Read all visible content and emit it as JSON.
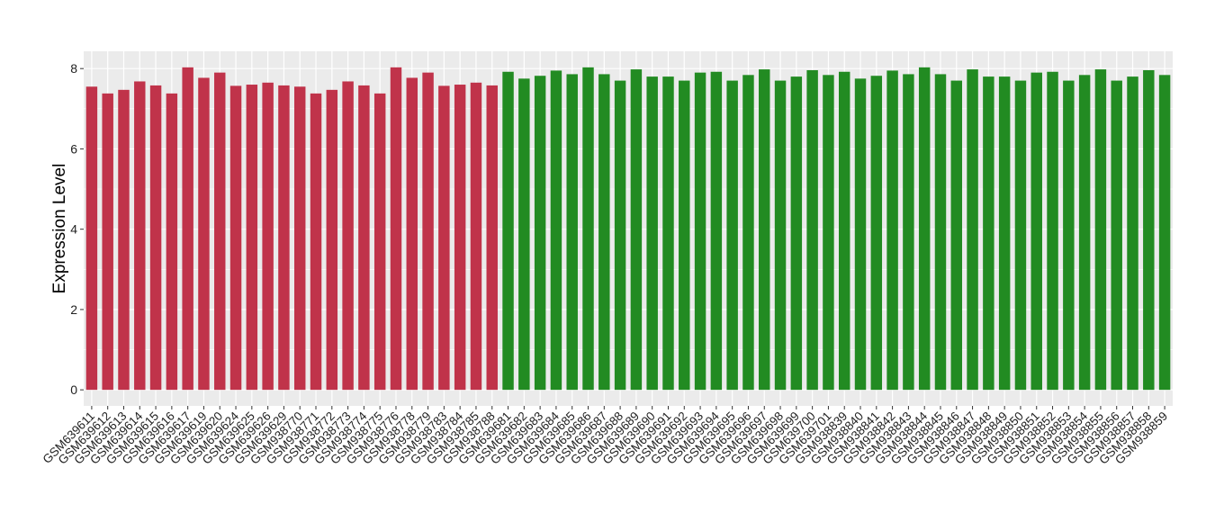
{
  "chart_data": {
    "type": "bar",
    "title": "",
    "xlabel": "",
    "ylabel": "Expression Level",
    "ylim": [
      -0.4,
      8.43
    ],
    "yticks": [
      0,
      2,
      4,
      6,
      8
    ],
    "grid": true,
    "legend": "none",
    "colors": {
      "group1": "#C0334A",
      "group2": "#228B22",
      "panel": "#EBEBEB"
    },
    "categories": [
      "GSM639611",
      "GSM639612",
      "GSM639613",
      "GSM639614",
      "GSM639615",
      "GSM639616",
      "GSM639617",
      "GSM639619",
      "GSM639620",
      "GSM639624",
      "GSM639625",
      "GSM639626",
      "GSM639629",
      "GSM938770",
      "GSM938771",
      "GSM938772",
      "GSM938773",
      "GSM938774",
      "GSM938775",
      "GSM938776",
      "GSM938778",
      "GSM938779",
      "GSM938783",
      "GSM938784",
      "GSM938785",
      "GSM938788",
      "GSM639681",
      "GSM639682",
      "GSM639683",
      "GSM639684",
      "GSM639685",
      "GSM639686",
      "GSM639687",
      "GSM639688",
      "GSM639689",
      "GSM639690",
      "GSM639691",
      "GSM639692",
      "GSM639693",
      "GSM639694",
      "GSM639695",
      "GSM639696",
      "GSM639697",
      "GSM639698",
      "GSM639699",
      "GSM639700",
      "GSM639701",
      "GSM938839",
      "GSM938840",
      "GSM938841",
      "GSM938842",
      "GSM938843",
      "GSM938844",
      "GSM938845",
      "GSM938846",
      "GSM938847",
      "GSM938848",
      "GSM938849",
      "GSM938850",
      "GSM938851",
      "GSM938852",
      "GSM938853",
      "GSM938854",
      "GSM938855",
      "GSM938856",
      "GSM938857",
      "GSM938858",
      "GSM938859"
    ],
    "values": [
      7.55,
      7.38,
      7.47,
      7.68,
      7.58,
      7.38,
      8.03,
      7.77,
      7.9,
      7.57,
      7.6,
      7.65,
      7.58,
      7.55,
      7.38,
      7.47,
      7.68,
      7.58,
      7.38,
      8.03,
      7.77,
      7.9,
      7.57,
      7.6,
      7.65,
      7.58,
      7.92,
      7.75,
      7.82,
      7.95,
      7.86,
      8.03,
      7.86,
      7.7,
      7.98,
      7.8,
      7.8,
      7.7,
      7.9,
      7.92,
      7.7,
      7.84,
      7.98,
      7.7,
      7.8,
      7.96,
      7.84,
      7.92,
      7.75,
      7.82,
      7.95,
      7.86,
      8.03,
      7.86,
      7.7,
      7.98,
      7.8,
      7.8,
      7.7,
      7.9,
      7.92,
      7.7,
      7.84,
      7.98,
      7.7,
      7.8,
      7.96,
      7.84
    ],
    "groups": [
      1,
      1,
      1,
      1,
      1,
      1,
      1,
      1,
      1,
      1,
      1,
      1,
      1,
      1,
      1,
      1,
      1,
      1,
      1,
      1,
      1,
      1,
      1,
      1,
      1,
      1,
      2,
      2,
      2,
      2,
      2,
      2,
      2,
      2,
      2,
      2,
      2,
      2,
      2,
      2,
      2,
      2,
      2,
      2,
      2,
      2,
      2,
      2,
      2,
      2,
      2,
      2,
      2,
      2,
      2,
      2,
      2,
      2,
      2,
      2,
      2,
      2,
      2,
      2,
      2,
      2,
      2,
      2
    ]
  }
}
